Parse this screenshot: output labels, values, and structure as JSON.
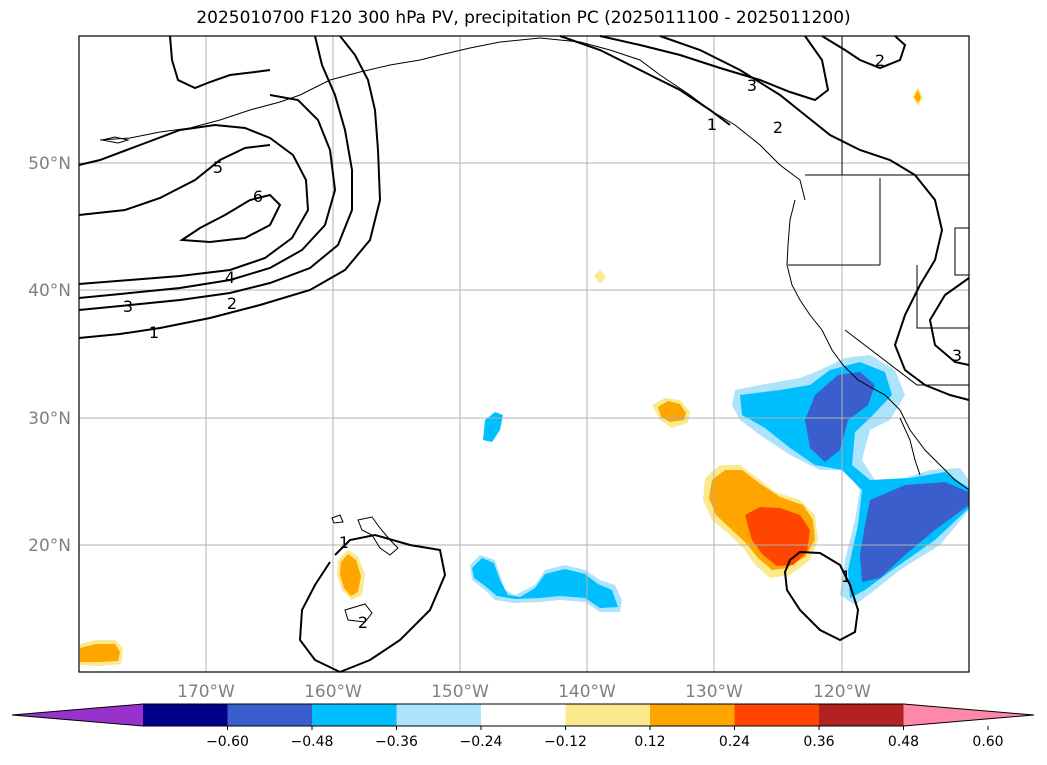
{
  "title": "2025010700 F120 300 hPa PV, precipitation PC (2025011100 - 2025011200)",
  "map": {
    "lat_labels": [
      "50°N",
      "40°N",
      "30°N",
      "20°N"
    ],
    "lon_labels": [
      "170°W",
      "160°W",
      "150°W",
      "140°W",
      "130°W",
      "120°W"
    ],
    "contour_labels": [
      {
        "text": "5"
      },
      {
        "text": "6"
      },
      {
        "text": "4"
      },
      {
        "text": "3"
      },
      {
        "text": "2"
      },
      {
        "text": "1"
      },
      {
        "text": "3"
      },
      {
        "text": "2"
      },
      {
        "text": "2"
      },
      {
        "text": "3"
      },
      {
        "text": "1"
      },
      {
        "text": "2"
      },
      {
        "text": "1"
      },
      {
        "text": "1"
      }
    ]
  },
  "colorbar": {
    "tick_labels": [
      "−0.60",
      "−0.48",
      "−0.36",
      "−0.24",
      "−0.12",
      "0.12",
      "0.24",
      "0.36",
      "0.48",
      "0.60"
    ],
    "colors": [
      "#9932cc",
      "#00008b",
      "#3a5fcd",
      "#00bfff",
      "#aee4fb",
      "#ffffff",
      "#fbe98e",
      "#ffa500",
      "#ff4500",
      "#b22222",
      "#ff88aa"
    ]
  }
}
